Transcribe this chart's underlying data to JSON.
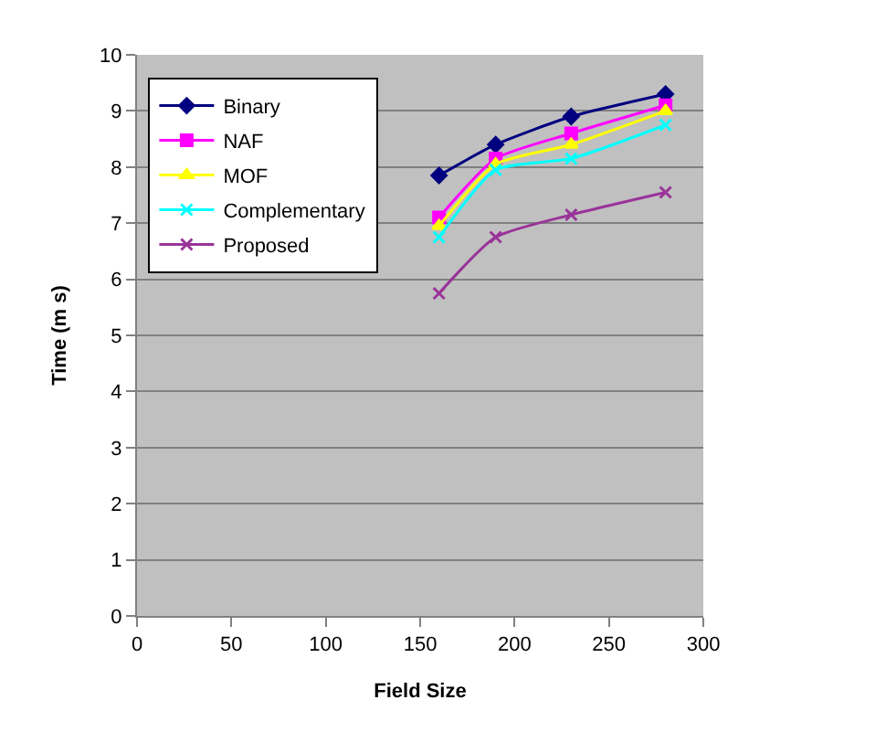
{
  "chart_data": {
    "type": "line",
    "xlabel": "Field Size",
    "ylabel": "Time (m s)",
    "x": [
      160,
      190,
      230,
      280
    ],
    "series": [
      {
        "name": "Binary",
        "color": "#000080",
        "marker": "diamond",
        "values": [
          7.85,
          8.4,
          8.9,
          9.3
        ]
      },
      {
        "name": "NAF",
        "color": "#ff00ff",
        "marker": "square",
        "values": [
          7.1,
          8.15,
          8.6,
          9.1
        ]
      },
      {
        "name": "MOF",
        "color": "#ffff00",
        "marker": "triangle",
        "values": [
          6.95,
          8.05,
          8.4,
          9.0
        ]
      },
      {
        "name": "Complementary",
        "color": "#00ffff",
        "marker": "cross",
        "values": [
          6.75,
          7.95,
          8.15,
          8.75
        ]
      },
      {
        "name": "Proposed",
        "color": "#993399",
        "marker": "cross",
        "values": [
          5.75,
          6.75,
          7.15,
          7.55
        ]
      }
    ],
    "xlim": [
      0,
      300
    ],
    "xticks": [
      0,
      50,
      100,
      150,
      200,
      250,
      300
    ],
    "ylim": [
      0,
      10
    ],
    "yticks": [
      0,
      1,
      2,
      3,
      4,
      5,
      6,
      7,
      8,
      9,
      10
    ],
    "grid": "y",
    "legend": "top left",
    "line_style": "solid"
  }
}
